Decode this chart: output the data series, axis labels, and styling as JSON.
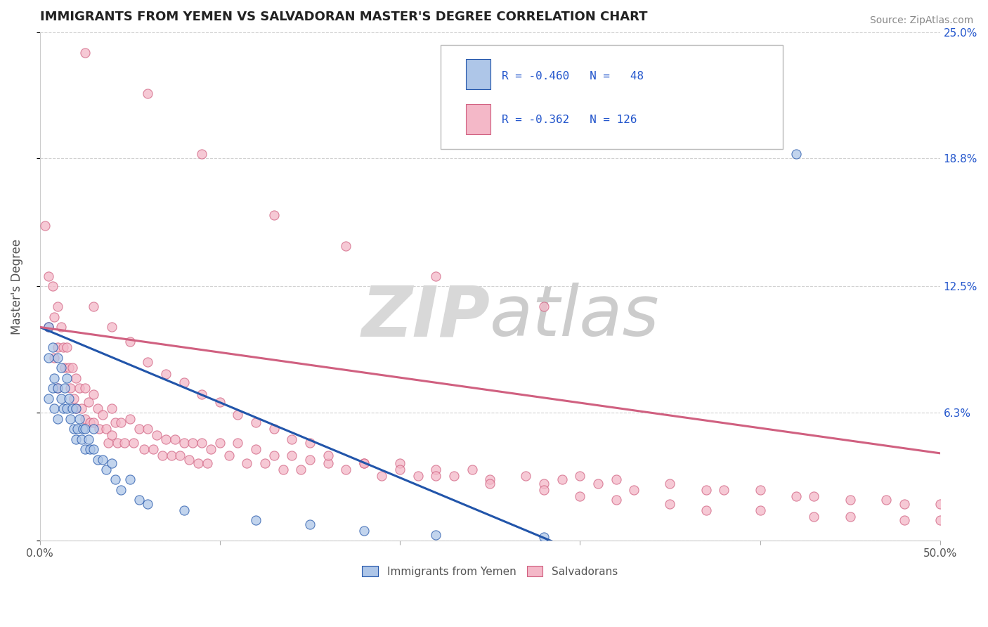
{
  "title": "IMMIGRANTS FROM YEMEN VS SALVADORAN MASTER'S DEGREE CORRELATION CHART",
  "source_text": "Source: ZipAtlas.com",
  "ylabel": "Master's Degree",
  "xmin": 0.0,
  "xmax": 0.5,
  "ymin": 0.0,
  "ymax": 0.25,
  "color_blue": "#aec6e8",
  "color_pink": "#f4b8c8",
  "line_color_blue": "#2255aa",
  "line_color_pink": "#d06080",
  "bg_color": "#ffffff",
  "grid_color": "#cccccc",
  "title_color": "#222222",
  "axis_label_color": "#555555",
  "legend_text_color": "#2255cc",
  "right_ytick_color": "#2255cc",
  "blue_line_x": [
    0.0,
    0.5
  ],
  "blue_line_y": [
    0.105,
    -0.08
  ],
  "pink_line_x": [
    0.0,
    0.5
  ],
  "pink_line_y": [
    0.105,
    0.043
  ],
  "blue_scatter_x": [
    0.005,
    0.005,
    0.005,
    0.007,
    0.007,
    0.008,
    0.008,
    0.01,
    0.01,
    0.01,
    0.012,
    0.012,
    0.013,
    0.014,
    0.015,
    0.015,
    0.016,
    0.017,
    0.018,
    0.019,
    0.02,
    0.02,
    0.021,
    0.022,
    0.023,
    0.024,
    0.025,
    0.025,
    0.027,
    0.028,
    0.03,
    0.03,
    0.032,
    0.035,
    0.037,
    0.04,
    0.042,
    0.045,
    0.05,
    0.055,
    0.06,
    0.08,
    0.12,
    0.15,
    0.18,
    0.22,
    0.28,
    0.42
  ],
  "blue_scatter_y": [
    0.105,
    0.09,
    0.07,
    0.095,
    0.075,
    0.08,
    0.065,
    0.09,
    0.075,
    0.06,
    0.085,
    0.07,
    0.065,
    0.075,
    0.08,
    0.065,
    0.07,
    0.06,
    0.065,
    0.055,
    0.065,
    0.05,
    0.055,
    0.06,
    0.05,
    0.055,
    0.055,
    0.045,
    0.05,
    0.045,
    0.055,
    0.045,
    0.04,
    0.04,
    0.035,
    0.038,
    0.03,
    0.025,
    0.03,
    0.02,
    0.018,
    0.015,
    0.01,
    0.008,
    0.005,
    0.003,
    0.002,
    0.19
  ],
  "pink_scatter_x": [
    0.003,
    0.005,
    0.005,
    0.007,
    0.008,
    0.008,
    0.01,
    0.01,
    0.01,
    0.012,
    0.013,
    0.014,
    0.015,
    0.016,
    0.017,
    0.018,
    0.019,
    0.02,
    0.02,
    0.022,
    0.023,
    0.025,
    0.025,
    0.027,
    0.028,
    0.03,
    0.03,
    0.032,
    0.033,
    0.035,
    0.037,
    0.038,
    0.04,
    0.04,
    0.042,
    0.043,
    0.045,
    0.047,
    0.05,
    0.052,
    0.055,
    0.058,
    0.06,
    0.063,
    0.065,
    0.068,
    0.07,
    0.073,
    0.075,
    0.078,
    0.08,
    0.083,
    0.085,
    0.088,
    0.09,
    0.093,
    0.095,
    0.1,
    0.105,
    0.11,
    0.115,
    0.12,
    0.125,
    0.13,
    0.135,
    0.14,
    0.145,
    0.15,
    0.16,
    0.17,
    0.18,
    0.19,
    0.2,
    0.21,
    0.22,
    0.23,
    0.24,
    0.25,
    0.27,
    0.28,
    0.29,
    0.3,
    0.31,
    0.32,
    0.33,
    0.35,
    0.37,
    0.38,
    0.4,
    0.42,
    0.43,
    0.45,
    0.47,
    0.48,
    0.5,
    0.03,
    0.04,
    0.05,
    0.06,
    0.07,
    0.08,
    0.09,
    0.1,
    0.11,
    0.12,
    0.13,
    0.14,
    0.15,
    0.16,
    0.18,
    0.2,
    0.22,
    0.25,
    0.28,
    0.3,
    0.32,
    0.35,
    0.37,
    0.4,
    0.43,
    0.45,
    0.48,
    0.5,
    0.025,
    0.06,
    0.09,
    0.13,
    0.17,
    0.22,
    0.28
  ],
  "pink_scatter_y": [
    0.155,
    0.13,
    0.105,
    0.125,
    0.11,
    0.09,
    0.115,
    0.095,
    0.075,
    0.105,
    0.095,
    0.085,
    0.095,
    0.085,
    0.075,
    0.085,
    0.07,
    0.08,
    0.065,
    0.075,
    0.065,
    0.075,
    0.06,
    0.068,
    0.058,
    0.072,
    0.058,
    0.065,
    0.055,
    0.062,
    0.055,
    0.048,
    0.065,
    0.052,
    0.058,
    0.048,
    0.058,
    0.048,
    0.06,
    0.048,
    0.055,
    0.045,
    0.055,
    0.045,
    0.052,
    0.042,
    0.05,
    0.042,
    0.05,
    0.042,
    0.048,
    0.04,
    0.048,
    0.038,
    0.048,
    0.038,
    0.045,
    0.048,
    0.042,
    0.048,
    0.038,
    0.045,
    0.038,
    0.042,
    0.035,
    0.042,
    0.035,
    0.04,
    0.038,
    0.035,
    0.038,
    0.032,
    0.038,
    0.032,
    0.035,
    0.032,
    0.035,
    0.03,
    0.032,
    0.028,
    0.03,
    0.032,
    0.028,
    0.03,
    0.025,
    0.028,
    0.025,
    0.025,
    0.025,
    0.022,
    0.022,
    0.02,
    0.02,
    0.018,
    0.018,
    0.115,
    0.105,
    0.098,
    0.088,
    0.082,
    0.078,
    0.072,
    0.068,
    0.062,
    0.058,
    0.055,
    0.05,
    0.048,
    0.042,
    0.038,
    0.035,
    0.032,
    0.028,
    0.025,
    0.022,
    0.02,
    0.018,
    0.015,
    0.015,
    0.012,
    0.012,
    0.01,
    0.01,
    0.24,
    0.22,
    0.19,
    0.16,
    0.145,
    0.13,
    0.115
  ]
}
